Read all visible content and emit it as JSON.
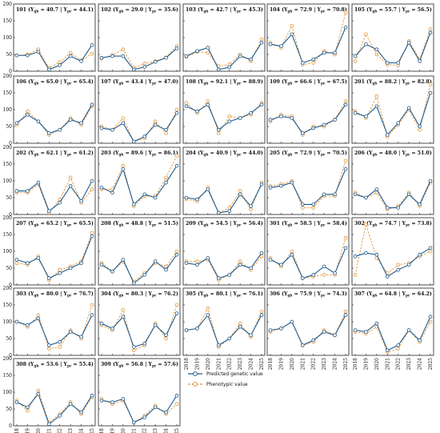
{
  "legend": {
    "predicted_label": "Predicted genetic value",
    "phenotypic_label": "Phenotypic value",
    "predicted_color": "#1f5a8c",
    "phenotypic_color": "#e6943b"
  },
  "chart_data": {
    "type": "line",
    "layout": "grid",
    "rows": 6,
    "cols": 5,
    "x": [
      "2018",
      "2019",
      "2020",
      "2021",
      "2022",
      "2023",
      "2024",
      "2025"
    ],
    "ylim": [
      0,
      200
    ],
    "yticks": [
      0,
      50,
      100,
      150,
      200
    ],
    "series_names": [
      "Predicted genetic value",
      "Phenotypic value"
    ],
    "panels": [
      {
        "id": "101",
        "y_gb": "40.7",
        "y_pr": "44.1",
        "predicted": [
          47,
          47,
          58,
          5,
          18,
          45,
          30,
          78
        ],
        "phenotypic": [
          47,
          50,
          65,
          10,
          27,
          55,
          32,
          52
        ]
      },
      {
        "id": "102",
        "y_gb": "29.0",
        "y_pr": "35.6",
        "predicted": [
          40,
          45,
          45,
          5,
          13,
          28,
          40,
          68
        ],
        "phenotypic": [
          38,
          48,
          65,
          10,
          23,
          30,
          41,
          75
        ]
      },
      {
        "id": "103",
        "y_gb": "42.7",
        "y_pr": "45.3",
        "predicted": [
          45,
          60,
          70,
          5,
          12,
          45,
          35,
          85
        ],
        "phenotypic": [
          42,
          58,
          55,
          15,
          20,
          50,
          30,
          95
        ]
      },
      {
        "id": "104",
        "y_gb": "72.9",
        "y_pr": "70.8",
        "predicted": [
          80,
          75,
          110,
          25,
          35,
          55,
          55,
          130
        ],
        "phenotypic": [
          85,
          70,
          135,
          20,
          25,
          60,
          50,
          175
        ]
      },
      {
        "id": "105",
        "y_gb": "55.7",
        "y_pr": "56.5",
        "predicted": [
          45,
          80,
          65,
          25,
          25,
          85,
          30,
          115
        ],
        "phenotypic": [
          30,
          110,
          50,
          20,
          18,
          90,
          35,
          125
        ]
      },
      {
        "id": "106",
        "y_gb": "65.0",
        "y_pr": "65.4",
        "predicted": [
          60,
          85,
          65,
          30,
          40,
          70,
          60,
          115
        ],
        "phenotypic": [
          55,
          95,
          65,
          25,
          40,
          75,
          55,
          110
        ]
      },
      {
        "id": "107",
        "y_gb": "43.4",
        "y_pr": "47.0",
        "predicted": [
          45,
          40,
          60,
          5,
          20,
          55,
          40,
          90
        ],
        "phenotypic": [
          50,
          40,
          75,
          5,
          15,
          65,
          30,
          100
        ]
      },
      {
        "id": "108",
        "y_gb": "92.1",
        "y_pr": "88.9",
        "predicted": [
          110,
          95,
          115,
          40,
          65,
          75,
          90,
          115
        ],
        "phenotypic": [
          120,
          90,
          125,
          30,
          80,
          75,
          85,
          120
        ]
      },
      {
        "id": "109",
        "y_gb": "66.6",
        "y_pr": "67.5",
        "predicted": [
          70,
          80,
          75,
          30,
          45,
          55,
          70,
          115
        ],
        "phenotypic": [
          65,
          85,
          80,
          25,
          50,
          50,
          70,
          125
        ]
      },
      {
        "id": "201",
        "y_gb": "88.2",
        "y_pr": "82.8",
        "predicted": [
          90,
          80,
          110,
          25,
          60,
          105,
          50,
          150
        ],
        "phenotypic": [
          95,
          75,
          140,
          20,
          55,
          100,
          40,
          175
        ]
      },
      {
        "id": "202",
        "y_gb": "62.1",
        "y_pr": "61.2",
        "predicted": [
          70,
          70,
          95,
          10,
          35,
          85,
          40,
          100
        ],
        "phenotypic": [
          65,
          65,
          90,
          5,
          45,
          110,
          35,
          75
        ]
      },
      {
        "id": "203",
        "y_gb": "89.6",
        "y_pr": "86.1",
        "predicted": [
          80,
          65,
          135,
          30,
          60,
          50,
          95,
          145
        ],
        "phenotypic": [
          75,
          75,
          145,
          25,
          55,
          55,
          110,
          175
        ]
      },
      {
        "id": "204",
        "y_gb": "40.9",
        "y_pr": "44.0",
        "predicted": [
          50,
          45,
          75,
          5,
          10,
          60,
          25,
          90
        ],
        "phenotypic": [
          45,
          40,
          80,
          5,
          20,
          70,
          15,
          95
        ]
      },
      {
        "id": "205",
        "y_gb": "72.9",
        "y_pr": "70.5",
        "predicted": [
          80,
          85,
          95,
          30,
          30,
          60,
          60,
          135
        ],
        "phenotypic": [
          85,
          90,
          100,
          20,
          20,
          55,
          55,
          160
        ]
      },
      {
        "id": "206",
        "y_gb": "48.0",
        "y_pr": "51.0",
        "predicted": [
          60,
          50,
          75,
          20,
          20,
          60,
          30,
          100
        ],
        "phenotypic": [
          65,
          50,
          65,
          15,
          25,
          65,
          25,
          95
        ]
      },
      {
        "id": "207",
        "y_gb": "65.2",
        "y_pr": "65.5",
        "predicted": [
          75,
          65,
          80,
          20,
          35,
          50,
          65,
          145
        ],
        "phenotypic": [
          65,
          60,
          85,
          15,
          45,
          55,
          70,
          155
        ]
      },
      {
        "id": "208",
        "y_gb": "48.8",
        "y_pr": "51.5",
        "predicted": [
          60,
          40,
          75,
          5,
          30,
          70,
          45,
          90
        ],
        "phenotypic": [
          65,
          40,
          70,
          10,
          35,
          65,
          55,
          100
        ]
      },
      {
        "id": "209",
        "y_gb": "54.5",
        "y_pr": "56.4",
        "predicted": [
          65,
          60,
          80,
          20,
          30,
          60,
          50,
          95
        ],
        "phenotypic": [
          70,
          70,
          75,
          15,
          30,
          70,
          45,
          85
        ]
      },
      {
        "id": "301",
        "y_gb": "58.5",
        "y_pr": "58.4",
        "predicted": [
          75,
          60,
          90,
          20,
          30,
          55,
          35,
          110
        ],
        "phenotypic": [
          80,
          55,
          100,
          20,
          25,
          30,
          30,
          140
        ]
      },
      {
        "id": "302",
        "y_gb": "74.7",
        "y_pr": "73.8",
        "predicted": [
          85,
          95,
          90,
          25,
          45,
          60,
          90,
          110
        ],
        "phenotypic": [
          30,
          180,
          80,
          35,
          60,
          65,
          85,
          100
        ]
      },
      {
        "id": "303",
        "y_gb": "80.0",
        "y_pr": "76.7",
        "predicted": [
          100,
          90,
          110,
          30,
          40,
          70,
          55,
          120
        ],
        "phenotypic": [
          100,
          85,
          120,
          20,
          25,
          75,
          50,
          150
        ]
      },
      {
        "id": "304",
        "y_gb": "80.3",
        "y_pr": "76.2",
        "predicted": [
          95,
          80,
          115,
          25,
          35,
          90,
          60,
          125
        ],
        "phenotypic": [
          90,
          75,
          135,
          15,
          30,
          95,
          50,
          150
        ]
      },
      {
        "id": "305",
        "y_gb": "80.1",
        "y_pr": "76.1",
        "predicted": [
          75,
          80,
          120,
          30,
          50,
          85,
          60,
          120
        ],
        "phenotypic": [
          75,
          80,
          140,
          25,
          50,
          95,
          55,
          130
        ]
      },
      {
        "id": "306",
        "y_gb": "75.9",
        "y_pr": "74.3",
        "predicted": [
          75,
          80,
          100,
          30,
          45,
          70,
          60,
          120
        ],
        "phenotypic": [
          70,
          80,
          100,
          30,
          40,
          75,
          60,
          130
        ]
      },
      {
        "id": "307",
        "y_gb": "64.8",
        "y_pr": "64.2",
        "predicted": [
          75,
          70,
          95,
          15,
          30,
          75,
          45,
          115
        ],
        "phenotypic": [
          70,
          65,
          85,
          10,
          20,
          75,
          40,
          100
        ]
      },
      {
        "id": "308",
        "y_gb": "53.6",
        "y_pr": "55.4",
        "predicted": [
          70,
          55,
          95,
          5,
          30,
          65,
          40,
          90
        ],
        "phenotypic": [
          75,
          45,
          105,
          10,
          35,
          70,
          35,
          85
        ]
      },
      {
        "id": "309",
        "y_gb": "56.8",
        "y_pr": "57.6",
        "predicted": [
          75,
          70,
          80,
          10,
          25,
          55,
          40,
          90
        ],
        "phenotypic": [
          80,
          65,
          75,
          10,
          30,
          60,
          35,
          65
        ]
      }
    ]
  }
}
